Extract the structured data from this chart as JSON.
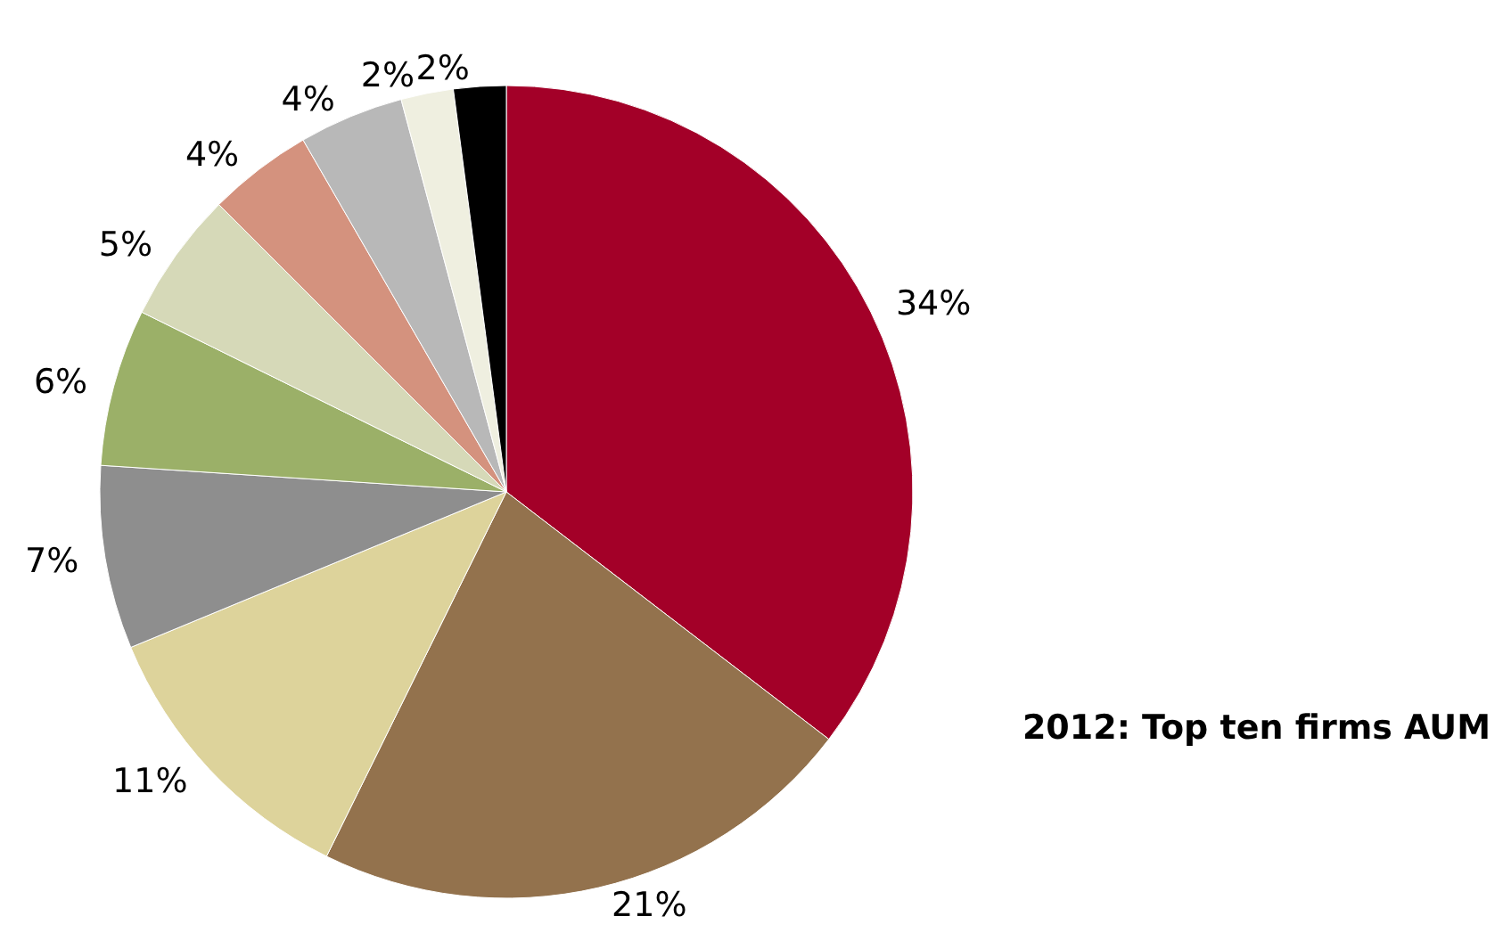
{
  "chart_data": {
    "type": "pie",
    "title": "2012: Top ten firms AUM",
    "categories": [
      null,
      null,
      null,
      null,
      null,
      null,
      null,
      null,
      null,
      null
    ],
    "values": [
      34,
      21,
      11,
      7,
      6,
      5,
      4,
      4,
      2,
      2
    ],
    "value_labels": [
      "34%",
      "21%",
      "11%",
      "7%",
      "6%",
      "5%",
      "4%",
      "4%",
      "2%",
      "2%"
    ],
    "colors": [
      "#a30028",
      "#93724d",
      "#ddd39b",
      "#8e8e8e",
      "#9bb068",
      "#d6d9b8",
      "#d4927e",
      "#b8b8b8",
      "#efefe0",
      "#000000"
    ]
  }
}
